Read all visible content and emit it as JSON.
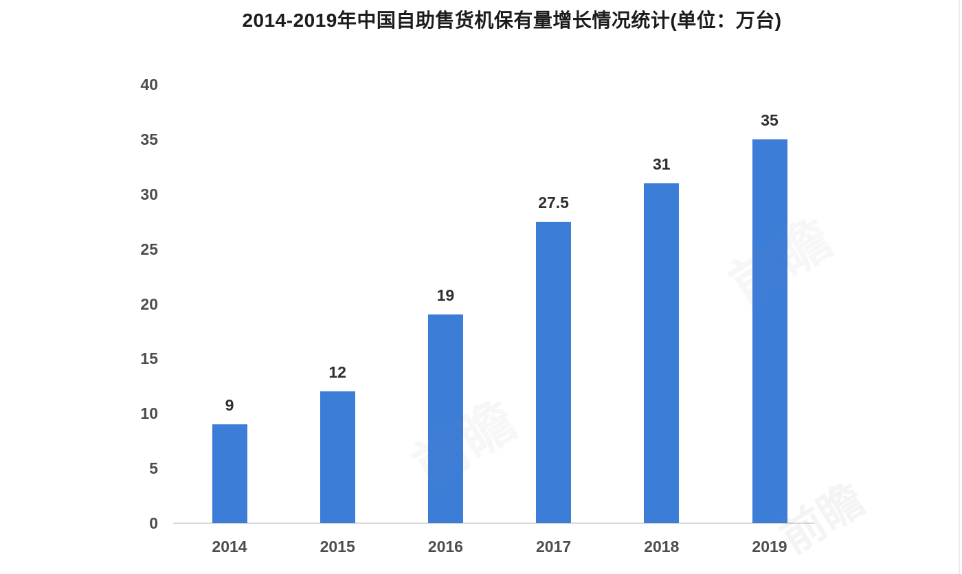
{
  "title": "2014-2019年中国自助售货机保有量增长情况统计(单位：万台)",
  "chart_data": {
    "type": "bar",
    "title": "2014-2019年中国自助售货机保有量增长情况统计(单位：万台)",
    "categories": [
      "2014",
      "2015",
      "2016",
      "2017",
      "2018",
      "2019"
    ],
    "values": [
      9,
      12,
      19,
      27.5,
      31,
      35
    ],
    "value_labels": [
      "9",
      "12",
      "19",
      "27.5",
      "31",
      "35"
    ],
    "unit": "万台",
    "xlabel": "",
    "ylabel": "",
    "ylim": [
      0,
      40
    ],
    "yticks": [
      0,
      5,
      10,
      15,
      20,
      25,
      30,
      35,
      40
    ],
    "grid": false,
    "legend": false,
    "bar_color": "#3c7dd8",
    "axis_line_color": "#d9d9d9",
    "title_color": "#1c1c1c",
    "tick_label_color": "#4d4d4d",
    "value_label_color": "#2e2e2e"
  },
  "watermark": {
    "text": "前瞻"
  }
}
